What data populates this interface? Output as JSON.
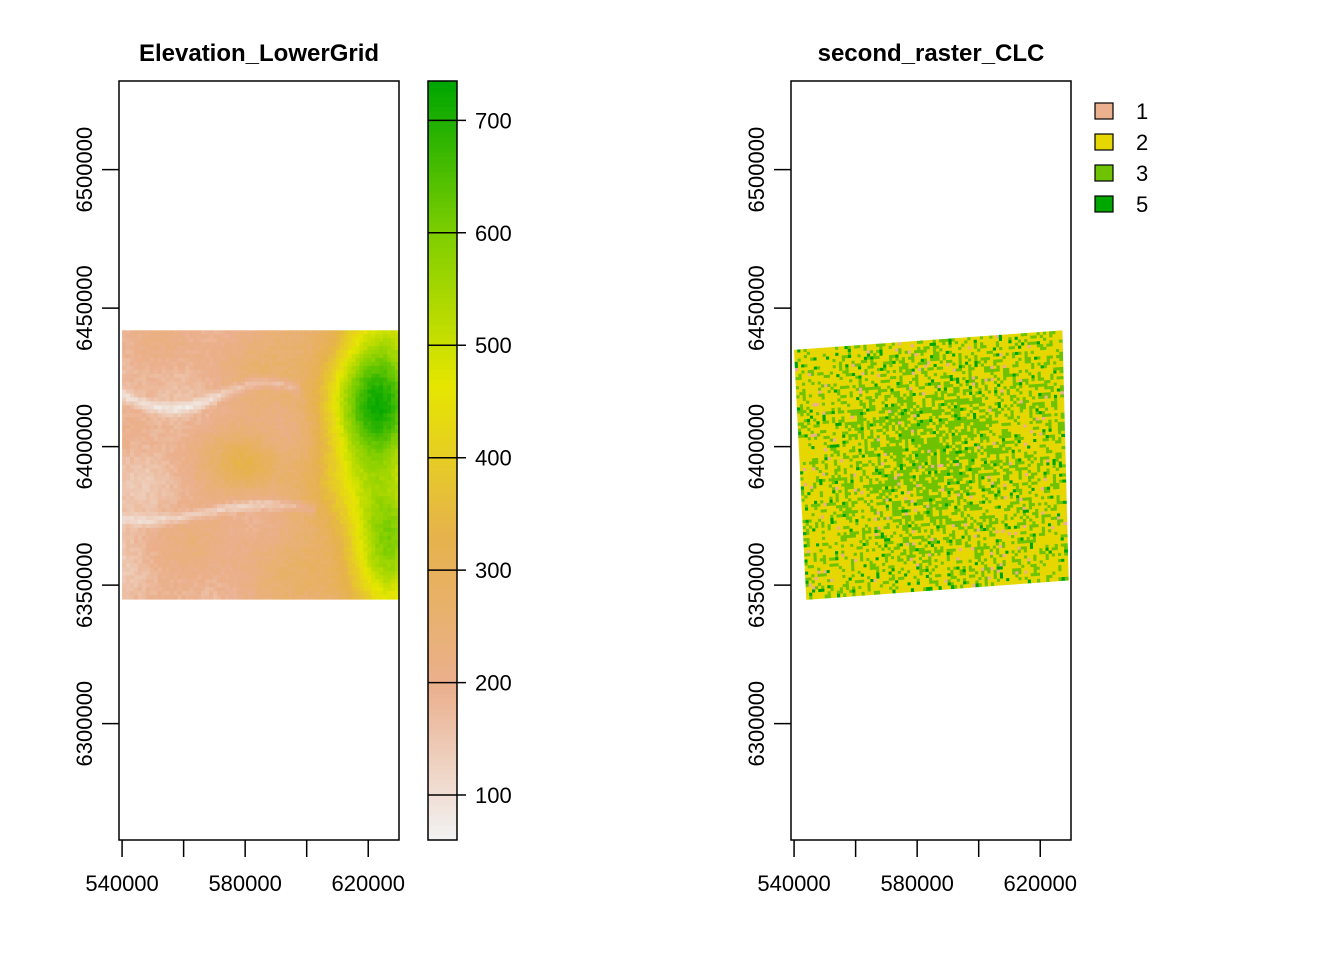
{
  "chart_data": [
    {
      "type": "heatmap",
      "title": "Elevation_LowerGrid",
      "xlim": [
        539000,
        630000
      ],
      "ylim": [
        6258000,
        6532000
      ],
      "x_ticks": [
        540000,
        560000,
        580000,
        600000,
        620000
      ],
      "x_tick_labels": [
        "540000",
        "580000",
        "620000"
      ],
      "y_ticks": [
        6300000,
        6350000,
        6400000,
        6450000,
        6500000
      ],
      "y_tick_labels": [
        "6300000",
        "6350000",
        "6400000",
        "6450000",
        "6500000"
      ],
      "raster_extent": {
        "xmin": 540000,
        "xmax": 630000,
        "ymin": 6345000,
        "ymax": 6442000
      },
      "colorbar": {
        "min": 60,
        "max": 735,
        "ticks": [
          100,
          200,
          300,
          400,
          500,
          600,
          700
        ],
        "tick_labels": [
          "100",
          "200",
          "300",
          "400",
          "500",
          "600",
          "700"
        ],
        "colors": [
          "#f2f2f2",
          "#ebb08e",
          "#e6b24c",
          "#e6e600",
          "#7fce00",
          "#00a600"
        ]
      }
    },
    {
      "type": "heatmap",
      "title": "second_raster_CLC",
      "xlim": [
        539000,
        630000
      ],
      "ylim": [
        6258000,
        6532000
      ],
      "x_ticks": [
        540000,
        560000,
        580000,
        600000,
        620000
      ],
      "x_tick_labels": [
        "540000",
        "580000",
        "620000"
      ],
      "y_ticks": [
        6300000,
        6350000,
        6400000,
        6450000,
        6500000
      ],
      "y_tick_labels": [
        "6300000",
        "6350000",
        "6400000",
        "6450000",
        "6500000"
      ],
      "raster_corners": [
        [
          540000,
          6435000
        ],
        [
          627000,
          6442000
        ],
        [
          629000,
          6352000
        ],
        [
          544000,
          6345000
        ]
      ],
      "class_mix": {
        "1": 0.02,
        "2": 0.5,
        "3": 0.44,
        "5": 0.04
      },
      "legend": {
        "placement": "right",
        "entries": [
          {
            "label": "1",
            "color": "#ebb08e"
          },
          {
            "label": "2",
            "color": "#e6d700"
          },
          {
            "label": "3",
            "color": "#6ec200"
          },
          {
            "label": "5",
            "color": "#00a600"
          }
        ]
      }
    }
  ]
}
